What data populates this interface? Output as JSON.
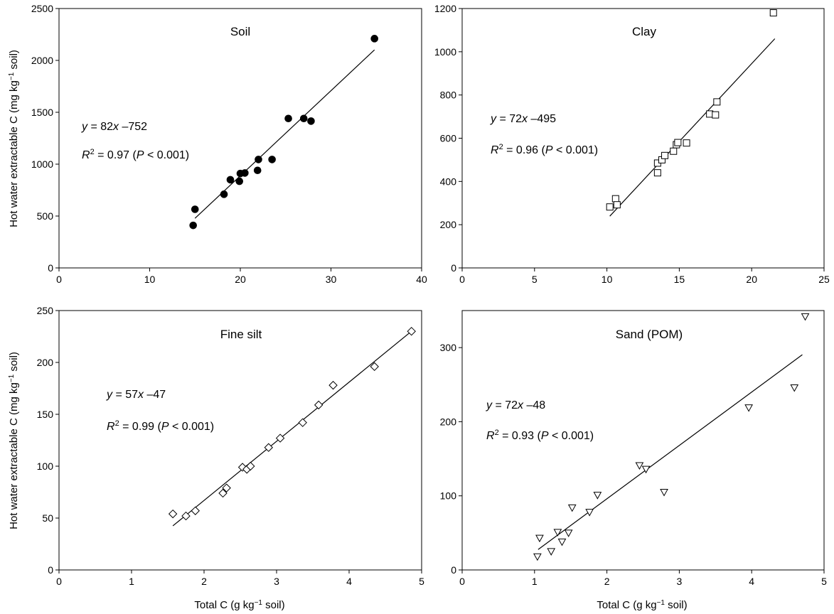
{
  "figure": {
    "ylabel_main": "Hot water extractable C (mg kg",
    "ylabel_sup": "−1",
    "ylabel_tail": " soil)",
    "xlabel_main": "Total C (g kg",
    "xlabel_sup": "−1",
    "xlabel_tail": " soil)"
  },
  "chart_data": [
    {
      "type": "scatter",
      "title": "Soil",
      "marker": "filled-circle",
      "xlim": [
        0,
        40
      ],
      "ylim": [
        0,
        2500
      ],
      "xticks": [
        0,
        10,
        20,
        30,
        40
      ],
      "yticks": [
        0,
        500,
        1000,
        1500,
        2000,
        2500
      ],
      "equation": {
        "y": "y",
        "mid": " = 82",
        "x": "x",
        "rest": " –752"
      },
      "r2": {
        "r": "R",
        "sup": "2",
        "mid": " = 0.97 (",
        "p": "P",
        "rest": " < 0.001)"
      },
      "fit": {
        "slope": 82,
        "intercept": -752,
        "x_range": [
          15,
          34.8
        ]
      },
      "points": [
        [
          14.8,
          410
        ],
        [
          15.0,
          565
        ],
        [
          18.2,
          710
        ],
        [
          18.9,
          850
        ],
        [
          19.9,
          835
        ],
        [
          20.0,
          910
        ],
        [
          20.5,
          915
        ],
        [
          21.9,
          940
        ],
        [
          22.0,
          1045
        ],
        [
          23.5,
          1045
        ],
        [
          25.3,
          1440
        ],
        [
          27.0,
          1440
        ],
        [
          27.8,
          1415
        ],
        [
          34.8,
          2210
        ]
      ]
    },
    {
      "type": "scatter",
      "title": "Clay",
      "marker": "open-square",
      "xlim": [
        0,
        25
      ],
      "ylim": [
        0,
        1200
      ],
      "xticks": [
        0,
        5,
        10,
        15,
        20,
        25
      ],
      "yticks": [
        0,
        200,
        400,
        600,
        800,
        1000,
        1200
      ],
      "equation": {
        "y": "y",
        "mid": " = 72",
        "x": "x",
        "rest": " –495"
      },
      "r2": {
        "r": "R",
        "sup": "2",
        "mid": " = 0.96 (",
        "p": "P",
        "rest": " < 0.001)"
      },
      "fit": {
        "slope": 72,
        "intercept": -495,
        "x_range": [
          10.2,
          21.6
        ]
      },
      "points": [
        [
          10.2,
          282
        ],
        [
          10.6,
          320
        ],
        [
          10.7,
          292
        ],
        [
          13.5,
          440
        ],
        [
          13.5,
          485
        ],
        [
          13.8,
          500
        ],
        [
          14.0,
          520
        ],
        [
          14.6,
          540
        ],
        [
          14.8,
          570
        ],
        [
          14.9,
          580
        ],
        [
          15.5,
          578
        ],
        [
          17.1,
          712
        ],
        [
          17.5,
          708
        ],
        [
          17.6,
          768
        ],
        [
          21.5,
          1180
        ]
      ]
    },
    {
      "type": "scatter",
      "title": "Fine silt",
      "marker": "open-diamond",
      "xlim": [
        0,
        5
      ],
      "ylim": [
        0,
        250
      ],
      "xticks": [
        0,
        1,
        2,
        3,
        4,
        5
      ],
      "yticks": [
        0,
        50,
        100,
        150,
        200,
        250
      ],
      "equation": {
        "y": "y",
        "mid": " = 57",
        "x": "x",
        "rest": " –47"
      },
      "r2": {
        "r": "R",
        "sup": "2",
        "mid": " = 0.99 (",
        "p": "P",
        "rest": " < 0.001)"
      },
      "fit": {
        "slope": 57,
        "intercept": -47,
        "x_range": [
          1.57,
          4.87
        ]
      },
      "points": [
        [
          1.57,
          54
        ],
        [
          1.75,
          52
        ],
        [
          1.88,
          57
        ],
        [
          2.26,
          74
        ],
        [
          2.31,
          79
        ],
        [
          2.53,
          99
        ],
        [
          2.59,
          97
        ],
        [
          2.64,
          100
        ],
        [
          2.89,
          118
        ],
        [
          3.05,
          127
        ],
        [
          3.36,
          142
        ],
        [
          3.58,
          159
        ],
        [
          3.78,
          178
        ],
        [
          4.35,
          196
        ],
        [
          4.86,
          230
        ]
      ]
    },
    {
      "type": "scatter",
      "title": "Sand (POM)",
      "marker": "open-triangle-down",
      "xlim": [
        0,
        5
      ],
      "ylim": [
        0,
        350
      ],
      "xticks": [
        0,
        1,
        2,
        3,
        4,
        5
      ],
      "yticks": [
        0,
        100,
        200,
        300
      ],
      "equation": {
        "y": "y",
        "mid": " = 72",
        "x": "x",
        "rest": " –48"
      },
      "r2": {
        "r": "R",
        "sup": "2",
        "mid": " = 0.93 (",
        "p": "P",
        "rest": " < 0.001)"
      },
      "fit": {
        "slope": 72,
        "intercept": -48,
        "x_range": [
          1.05,
          4.7
        ]
      },
      "points": [
        [
          1.04,
          18
        ],
        [
          1.07,
          43
        ],
        [
          1.23,
          25
        ],
        [
          1.32,
          51
        ],
        [
          1.38,
          38
        ],
        [
          1.47,
          50
        ],
        [
          1.52,
          84
        ],
        [
          1.76,
          78
        ],
        [
          1.87,
          101
        ],
        [
          2.45,
          141
        ],
        [
          2.54,
          136
        ],
        [
          2.79,
          105
        ],
        [
          3.96,
          219
        ],
        [
          4.59,
          246
        ],
        [
          4.74,
          342
        ]
      ]
    }
  ]
}
